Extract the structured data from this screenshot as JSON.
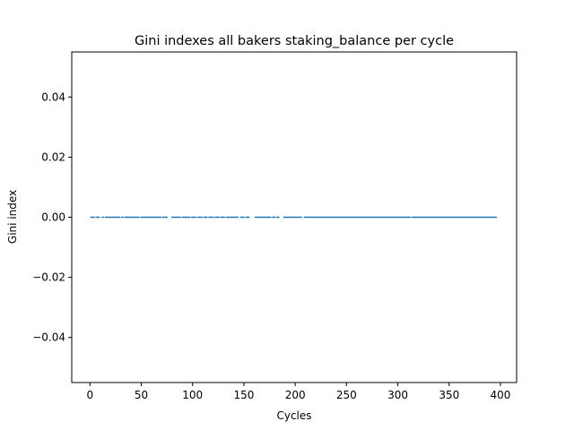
{
  "chart_data": {
    "type": "line",
    "title": "Gini indexes all bakers staking_balance per cycle",
    "xlabel": "Cycles",
    "ylabel": "Gini index",
    "xlim": [
      -17.75,
      415.75
    ],
    "ylim": [
      -0.055,
      0.055
    ],
    "x_ticks": [
      0,
      50,
      100,
      150,
      200,
      250,
      300,
      350,
      400
    ],
    "x_tick_labels": [
      "0",
      "50",
      "100",
      "150",
      "200",
      "250",
      "300",
      "350",
      "400"
    ],
    "y_ticks": [
      -0.04,
      -0.02,
      0.0,
      0.02,
      0.04
    ],
    "y_tick_labels": [
      "−0.04",
      "−0.02",
      "0.00",
      "0.02",
      "0.04"
    ],
    "grid": false,
    "legend": null,
    "series": [
      {
        "color": "#1f77b4",
        "y_value": 0.0,
        "segments": [
          [
            1,
            4
          ],
          [
            6,
            9
          ],
          [
            12,
            13
          ],
          [
            15,
            19
          ],
          [
            20,
            27
          ],
          [
            28,
            29
          ],
          [
            31,
            32
          ],
          [
            34,
            48
          ],
          [
            50,
            63
          ],
          [
            64,
            66
          ],
          [
            67,
            69
          ],
          [
            71,
            75
          ],
          [
            80,
            88
          ],
          [
            90,
            97
          ],
          [
            99,
            103
          ],
          [
            105,
            109
          ],
          [
            111,
            114
          ],
          [
            116,
            120
          ],
          [
            122,
            126
          ],
          [
            128,
            131
          ],
          [
            133,
            144
          ],
          [
            147,
            150
          ],
          [
            152,
            155
          ],
          [
            161,
            168
          ],
          [
            169,
            173
          ],
          [
            174,
            176
          ],
          [
            178,
            180
          ],
          [
            182,
            184
          ],
          [
            189,
            206
          ],
          [
            209,
            237
          ],
          [
            238,
            278
          ],
          [
            279,
            312
          ],
          [
            314,
            396
          ]
        ]
      }
    ]
  }
}
